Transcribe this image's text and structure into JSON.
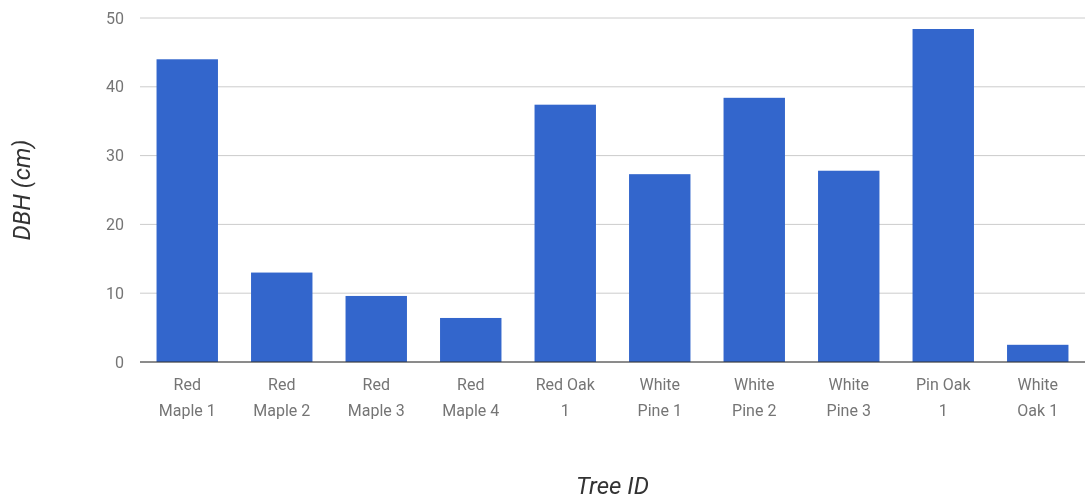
{
  "chart_data": {
    "type": "bar",
    "xlabel": "Tree ID",
    "ylabel": "DBH (cm)",
    "categories": [
      "Red Maple 1",
      "Red Maple 2",
      "Red Maple 3",
      "Red Maple 4",
      "Red Oak 1",
      "White Pine 1",
      "White Pine 2",
      "White Pine 3",
      "Pin Oak 1",
      "White Oak 1"
    ],
    "values": [
      44,
      13,
      9.6,
      6.4,
      37.4,
      27.3,
      38.4,
      27.8,
      48.4,
      2.5
    ],
    "color": "#3366cc",
    "ylim": [
      0,
      50
    ],
    "yticks": [
      0,
      10,
      20,
      30,
      40,
      50
    ],
    "grid": "y"
  }
}
